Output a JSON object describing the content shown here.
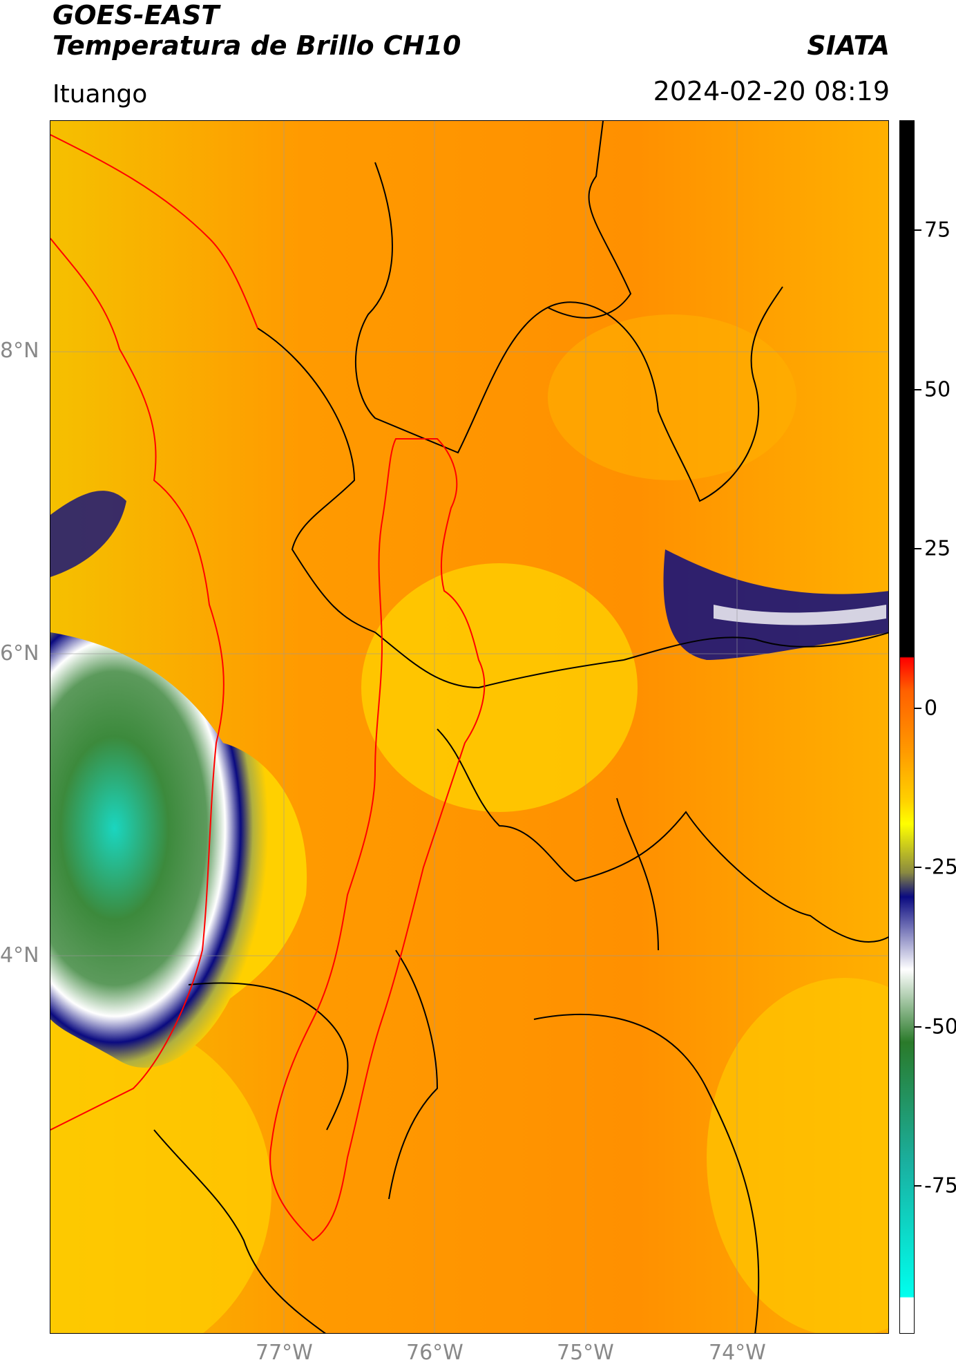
{
  "header": {
    "title_line1": "GOES-EAST",
    "title_line2": "Temperatura de Brillo CH10",
    "brand": "SIATA",
    "location": "Ituango",
    "timestamp": "2024-02-20 08:19"
  },
  "map": {
    "lat_labels": [
      "8°N",
      "6°N",
      "4°N"
    ],
    "lon_labels": [
      "77°W",
      "76°W",
      "75°W",
      "74°W"
    ]
  },
  "colorbar": {
    "ticks": [
      "75",
      "50",
      "25",
      "0",
      "-25",
      "-50",
      "-75"
    ],
    "range": [
      -90,
      92
    ],
    "colors": {
      "black": "#000000",
      "red": "#ff0000",
      "orange": "#ff8c00",
      "yellow": "#ffff00",
      "olive": "#8a8a40",
      "navy": "#0a0a80",
      "white": "#ffffff",
      "green": "#3c8a3c",
      "cyan": "#00e0d0"
    }
  }
}
